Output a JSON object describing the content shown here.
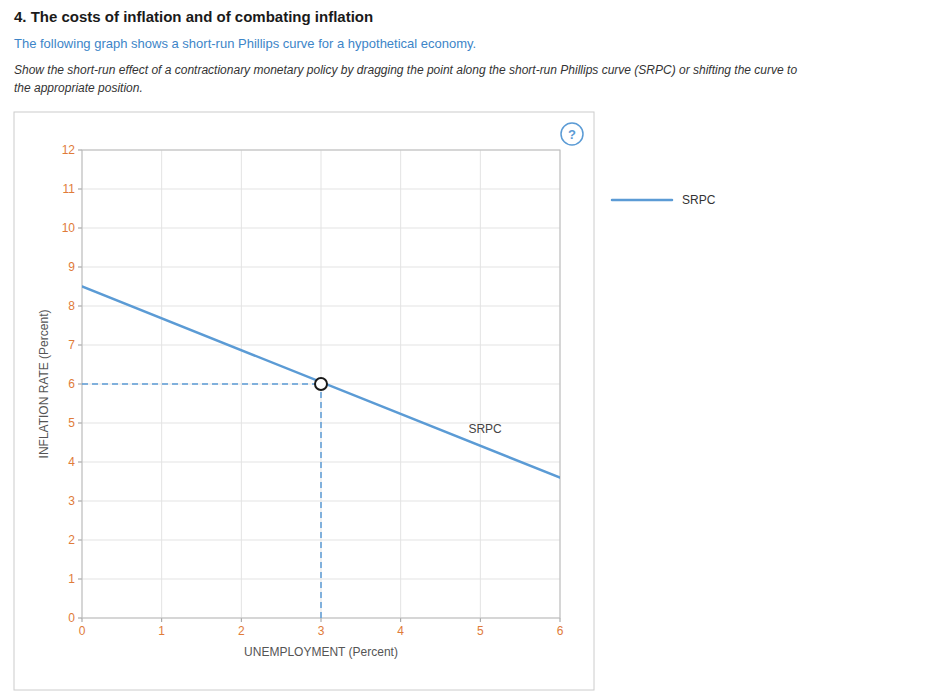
{
  "chart_data": {
    "type": "line",
    "title": "4. The costs of inflation and of combating inflation",
    "subtitle": [
      "The following graph shows a short-run Phillips curve for a hypothetical economy.",
      "Show the short-run effect of a contractionary monetary policy by dragging the point along the short-run Phillips curve (SRPC) or shifting the curve to",
      "the appropriate position."
    ],
    "x_label": "UNEMPLOYMENT (Percent)",
    "y_label": "INFLATION RATE (Percent)",
    "xlim": [
      0,
      6
    ],
    "ylim": [
      0,
      12
    ],
    "xticks": [
      0,
      1,
      2,
      3,
      4,
      5,
      6
    ],
    "yticks": [
      0,
      1,
      2,
      3,
      4,
      5,
      6,
      7,
      8,
      9,
      10,
      11,
      12
    ],
    "grid": true,
    "legend": "right",
    "series": [
      {
        "name": "SRPC",
        "color": "#5b9bd5",
        "x": [
          0,
          6
        ],
        "values": [
          8.5,
          3.6
        ]
      },
      {
        "type": "scatter",
        "marker": "circle",
        "color": "#5b9bd5",
        "x": [
          3
        ],
        "values": [
          6
        ]
      }
    ],
    "annotations": [
      {
        "text": "SRPC",
        "x": 4.85,
        "y": 4.85
      },
      {
        "text": "?"
      }
    ]
  }
}
